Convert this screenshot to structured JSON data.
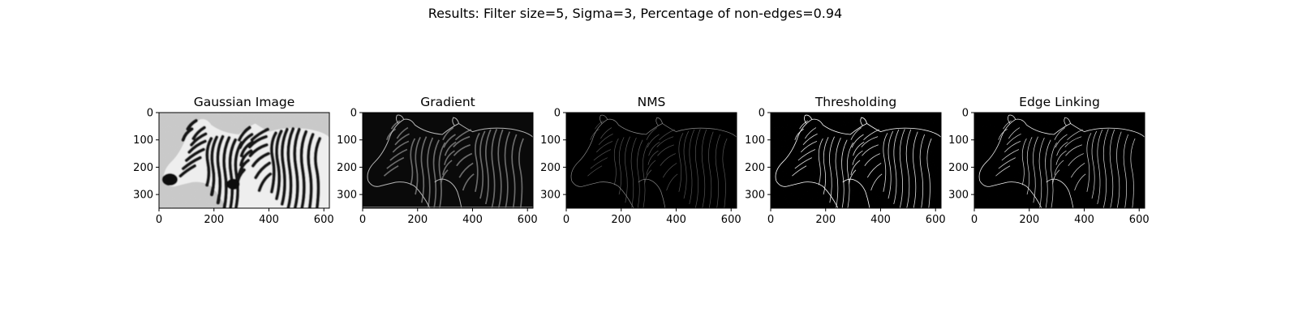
{
  "figure": {
    "title": "Results: Filter size=5, Sigma=3, Percentage of non-edges=0.94"
  },
  "panels": [
    {
      "key": "gaussian",
      "title": "Gaussian Image",
      "image": "blurred-zebra-image"
    },
    {
      "key": "gradient",
      "title": "Gradient",
      "image": "gradient-magnitude-image"
    },
    {
      "key": "nms",
      "title": "NMS",
      "image": "non-max-suppression-image"
    },
    {
      "key": "threshold",
      "title": "Thresholding",
      "image": "threshold-edges-image"
    },
    {
      "key": "linking",
      "title": "Edge Linking",
      "image": "linked-edges-image"
    }
  ],
  "axes": {
    "x_ticks": [
      "0",
      "200",
      "400",
      "600"
    ],
    "y_ticks": [
      "0",
      "100",
      "200",
      "300"
    ],
    "image_size": {
      "width": 620,
      "height": 350
    }
  },
  "colors": {
    "background": "#ffffff",
    "axis": "#000000"
  }
}
